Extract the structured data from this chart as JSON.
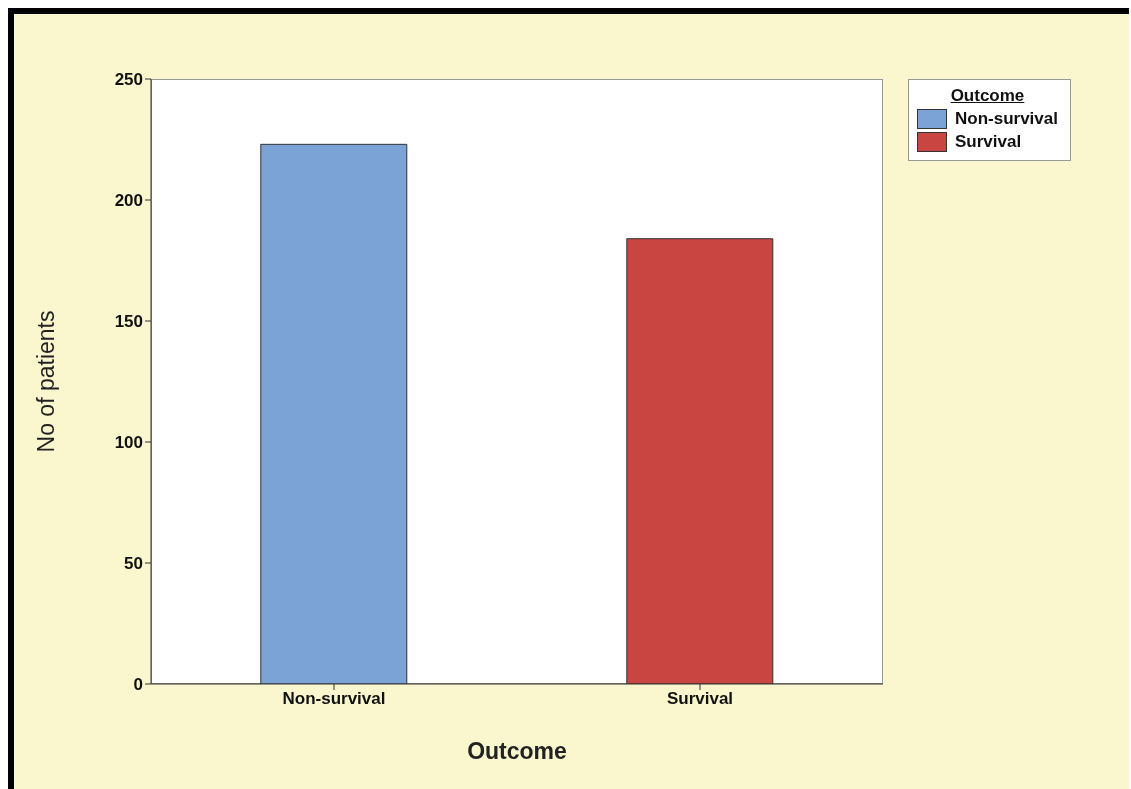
{
  "chart_data": {
    "type": "bar",
    "categories": [
      "Non-survival",
      "Survival"
    ],
    "series": [
      {
        "name": "Non-survival",
        "color": "#7ba3d6",
        "values": [
          223,
          null
        ]
      },
      {
        "name": "Survival",
        "color": "#c94541",
        "values": [
          null,
          184
        ]
      }
    ],
    "xlabel": "Outcome",
    "ylabel": "No of patients",
    "legend_title": "Outcome",
    "legend": "top right",
    "ylim": [
      0,
      250
    ],
    "yticks": [
      0,
      50,
      100,
      150,
      200,
      250
    ],
    "grid": false
  }
}
